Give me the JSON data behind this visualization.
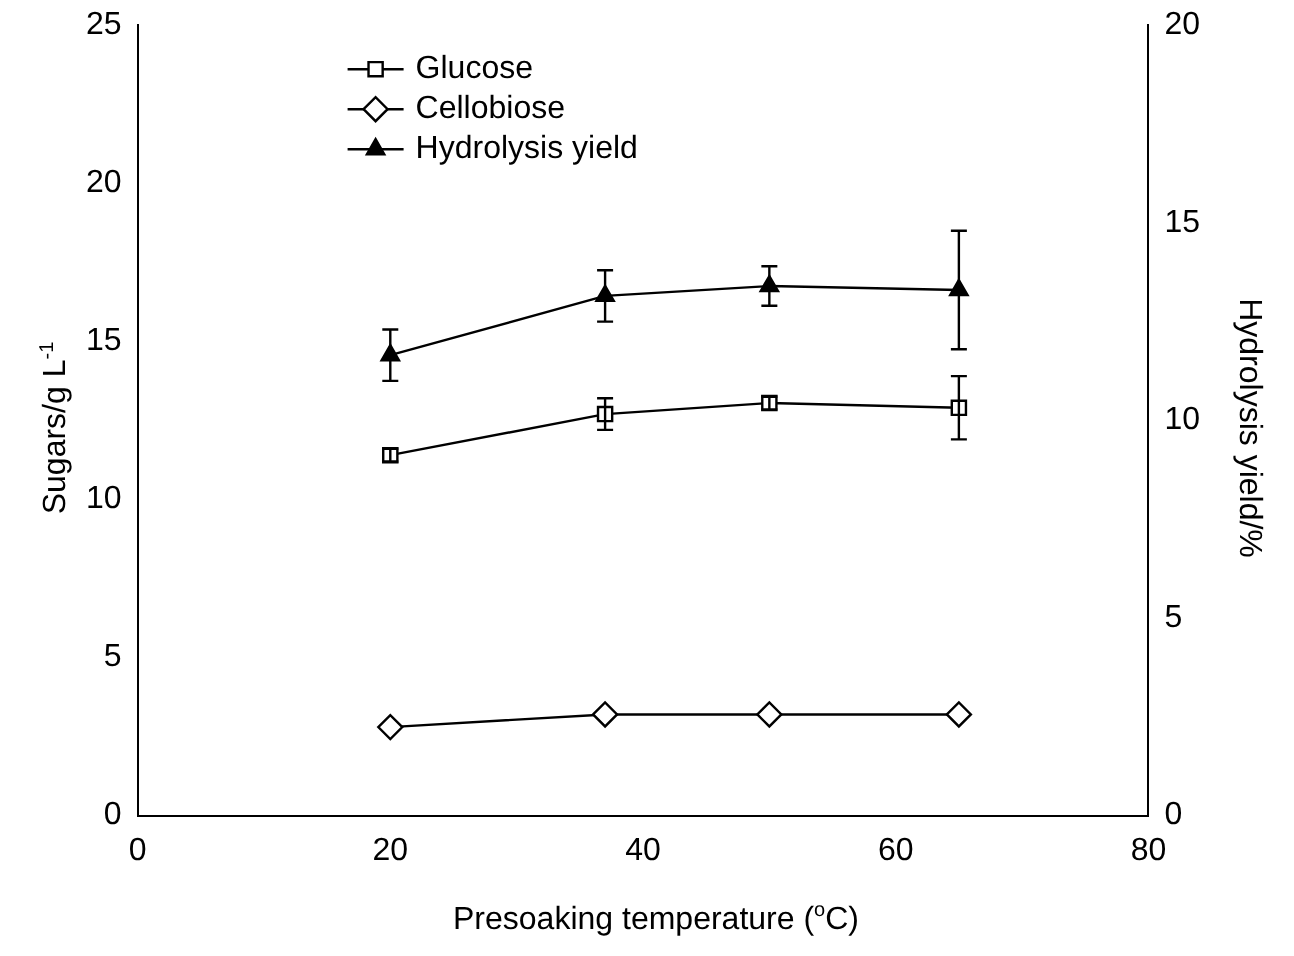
{
  "chart_data": {
    "type": "line",
    "xlabel": "Presoaking temperature ($^{o}$C)",
    "ylabel": "Sugars/g L$^{-1}$",
    "y2label": "Hydrolysis yield/%",
    "x": [
      20,
      37,
      50,
      65
    ],
    "series": [
      {
        "name": "Glucose",
        "color": "#000000",
        "marker": "square",
        "values": [
          11.4,
          12.7,
          13.05,
          12.9
        ],
        "errors": [
          0.2,
          0.5,
          0.2,
          1.0
        ]
      },
      {
        "name": "Cellobiose",
        "color": "#000000",
        "marker": "diamond",
        "values": [
          2.8,
          3.2,
          3.2,
          3.2
        ]
      },
      {
        "name": "Hydrolysis yield",
        "color": "#000000",
        "marker": "triangle",
        "axis": "y2",
        "values": [
          11.65,
          13.15,
          13.4,
          13.3
        ],
        "errors": [
          0.65,
          0.65,
          0.5,
          1.5
        ]
      }
    ],
    "xlim": [
      0,
      80
    ],
    "xticks": [
      0,
      20,
      40,
      60,
      80
    ],
    "ylim": [
      0,
      25
    ],
    "yticks": [
      0,
      5,
      10,
      15,
      20,
      25
    ],
    "y2lim": [
      0,
      20
    ],
    "y2ticks": [
      0,
      5,
      10,
      15,
      20
    ],
    "grid": false,
    "legend": "top left"
  }
}
